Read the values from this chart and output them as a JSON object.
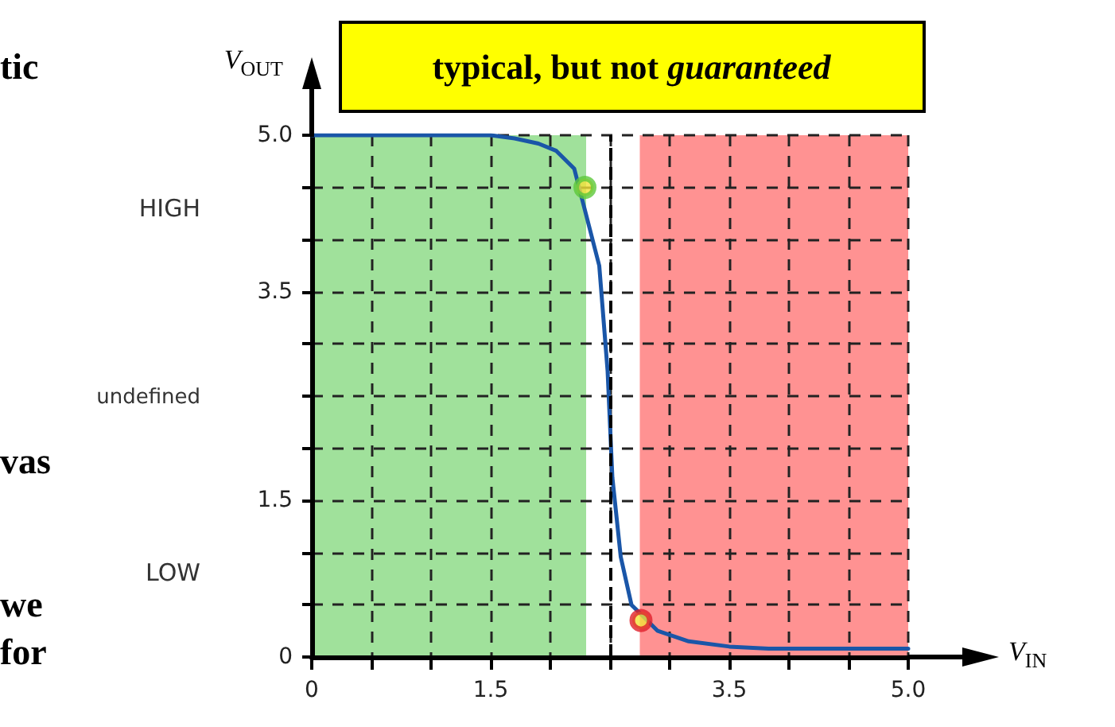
{
  "chart_data": {
    "type": "line",
    "title": "typical, but not guaranteed",
    "xlabel": "V$_{IN}$",
    "ylabel": "V$_{OUT}$",
    "series": [
      {
        "color": "#1a56a8",
        "marker": "none",
        "line_style": "solid",
        "x": [
          0,
          1.5,
          1.7,
          1.9,
          2.05,
          2.2,
          2.41,
          2.48,
          2.52,
          2.59,
          2.68,
          2.9,
          3.16,
          3.5,
          3.83,
          4.5,
          5.0
        ],
        "values": [
          5.0,
          5.0,
          4.97,
          4.92,
          4.85,
          4.68,
          3.75,
          2.74,
          1.72,
          0.96,
          0.5,
          0.25,
          0.15,
          0.1,
          0.08,
          0.08,
          0.08
        ]
      },
      {
        "type": "scatter",
        "color": "#5cc83a",
        "marker": "circle",
        "x": [
          2.29
        ],
        "values": [
          4.5
        ]
      },
      {
        "type": "scatter",
        "color": "#e0202c",
        "marker": "circle",
        "x": [
          2.76
        ],
        "values": [
          0.35
        ]
      }
    ],
    "xlim": [
      0,
      5
    ],
    "ylim": [
      0,
      5
    ],
    "xticks": [
      0,
      {
        "value": 0.5,
        "label": null
      },
      {
        "value": 1,
        "label": null
      },
      1.5,
      {
        "value": 2,
        "label": null
      },
      {
        "value": 2.5,
        "label": null
      },
      {
        "value": 3,
        "label": null
      },
      3.5,
      {
        "value": 4,
        "label": null
      },
      {
        "value": 4.5,
        "label": null
      },
      {
        "value": 5,
        "label": "5.0"
      }
    ],
    "yticks": [
      0,
      {
        "value": 0.5,
        "label": null
      },
      {
        "value": 1,
        "label": null
      },
      1.5,
      {
        "value": 2,
        "label": null
      },
      {
        "value": 2.5,
        "label": null
      },
      {
        "value": 3,
        "label": null
      },
      3.5,
      {
        "value": 4,
        "label": null
      },
      {
        "value": 4.5,
        "label": null
      },
      {
        "value": 5,
        "label": "5.0"
      }
    ],
    "grid": true,
    "bands": [
      {
        "axis": "x",
        "from": 0,
        "to": 2.3,
        "color": "#8fdc8a"
      },
      {
        "axis": "x",
        "from": 2.75,
        "to": 5,
        "color": "#ff7f7f"
      }
    ],
    "ref_lines": [
      {
        "axis": "x",
        "value": 2.5,
        "color": "#000000",
        "line_style": "dashed"
      }
    ],
    "annotations": [
      "tic",
      "vas",
      "we",
      "for",
      "HIGH",
      "undefined",
      "LOW"
    ]
  }
}
